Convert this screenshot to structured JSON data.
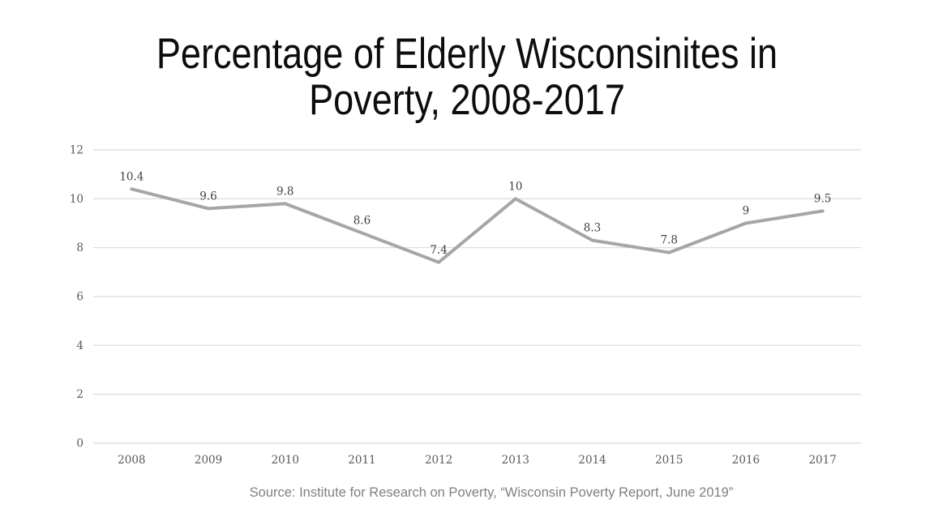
{
  "title_lines": [
    "Percentage of Elderly Wisconsinites in",
    "Poverty, 2008-2017"
  ],
  "source_note": "Source: Institute for Research on Poverty, “Wisconsin Poverty Report, June 2019”",
  "colors": {
    "title_text": "#0d0d0d",
    "source_text": "#808080",
    "line": "#a6a6a6",
    "gridline": "#d9d9d9",
    "axis_text": "#595959",
    "data_label_text": "#404040"
  },
  "chart_data": {
    "type": "line",
    "title": "Percentage of Elderly Wisconsinites in Poverty, 2008-2017",
    "categories": [
      "2008",
      "2009",
      "2010",
      "2011",
      "2012",
      "2013",
      "2014",
      "2015",
      "2016",
      "2017"
    ],
    "values": [
      10.4,
      9.6,
      9.8,
      8.6,
      7.4,
      10,
      8.3,
      7.8,
      9,
      9.5
    ],
    "data_labels": [
      "10.4",
      "9.6",
      "9.8",
      "8.6",
      "7.4",
      "10",
      "8.3",
      "7.8",
      "9",
      "9.5"
    ],
    "xlabel": "",
    "ylabel": "",
    "ylim": [
      0,
      12
    ],
    "yticks": [
      0,
      2,
      4,
      6,
      8,
      10,
      12
    ],
    "grid": "horizontal",
    "legend": "none",
    "annotation": "Source: Institute for Research on Poverty, “Wisconsin Poverty Report, June 2019”"
  }
}
